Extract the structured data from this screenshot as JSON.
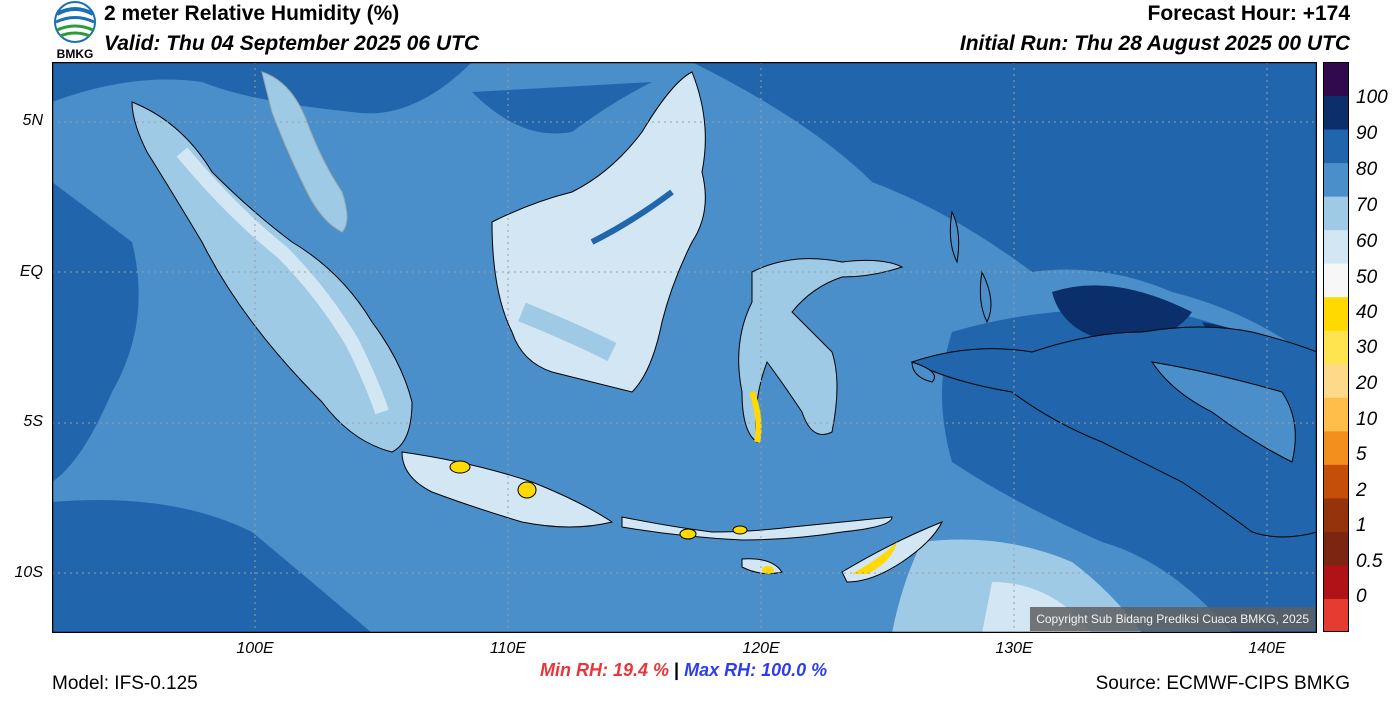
{
  "header": {
    "title": "2 meter Relative Humidity (%)",
    "valid": "Valid: Thu 04 September 2025 06 UTC",
    "forecast_hour": "Forecast Hour: +174",
    "initial_run": "Initial Run: Thu 28 August 2025 00 UTC",
    "logo_text": "BMKG"
  },
  "map": {
    "lat_labels": [
      "5N",
      "EQ",
      "5S",
      "10S"
    ],
    "lon_labels": [
      "100E",
      "110E",
      "120E",
      "130E",
      "140E"
    ],
    "copyright": "Copyright Sub Bidang Prediksi Cuaca BMKG, 2025",
    "colors": {
      "ocean_deep": "#2166ac",
      "ocean": "#4a8fc9",
      "land_light": "#d3e6f3",
      "land_mid": "#9ecae6",
      "dry": "#ffd900"
    }
  },
  "colorbar": {
    "labels": [
      "100",
      "90",
      "80",
      "70",
      "60",
      "50",
      "40",
      "30",
      "20",
      "10",
      "5",
      "2",
      "1",
      "0.5",
      "0"
    ],
    "colors": [
      "#e53c32",
      "#b11218",
      "#7c2510",
      "#95330d",
      "#c54e09",
      "#f38f1c",
      "#ffbe4a",
      "#ffd98a",
      "#ffe44f",
      "#ffd900",
      "#f7f7f7",
      "#d3e6f3",
      "#9ecae6",
      "#4a8fc9",
      "#2166ac",
      "#0b2f6b",
      "#300a4c"
    ]
  },
  "footer": {
    "model": "Model: IFS-0.125",
    "source": "Source: ECMWF-CIPS BMKG",
    "min_rh": "Min RH:  19.4 %",
    "max_rh": "Max RH: 100.0 %",
    "separator": "|"
  }
}
